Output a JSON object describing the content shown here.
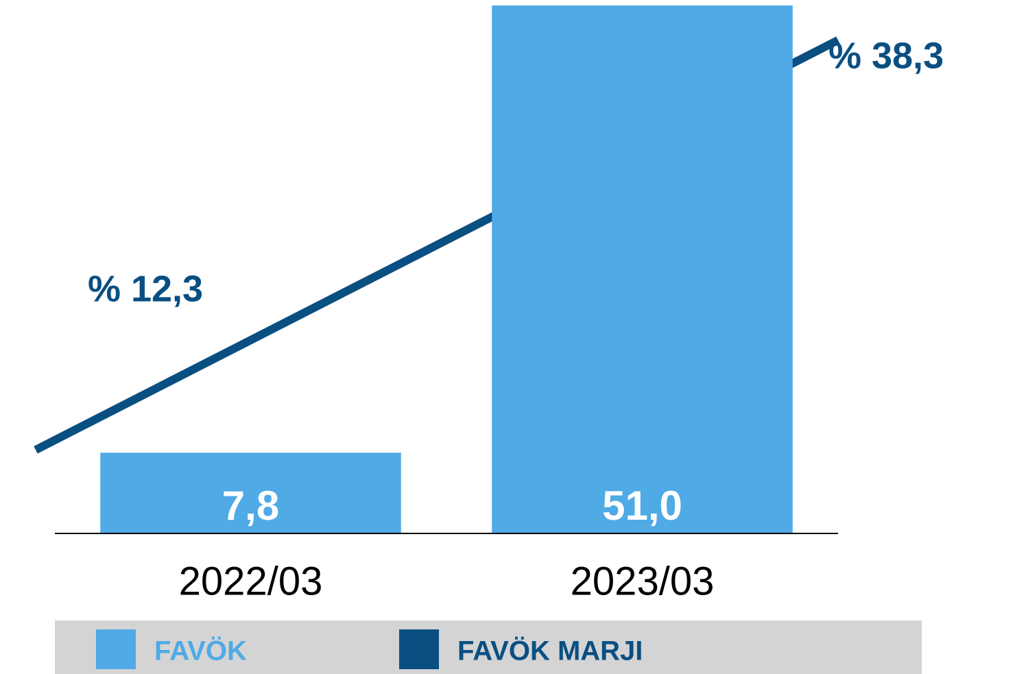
{
  "chart_data": {
    "type": "bar",
    "categories": [
      "2022/03",
      "2023/03"
    ],
    "series": [
      {
        "name": "FAVÖK",
        "color": "#4faae6",
        "values": [
          7.8,
          51.0
        ],
        "value_labels": [
          "7,8",
          "51,0"
        ]
      },
      {
        "name": "FAVÖK MARJI",
        "type": "line",
        "axis": "y2",
        "color": "#0a4f82",
        "values": [
          12.3,
          38.3
        ],
        "value_labels": [
          "% 12,3",
          "% 38,3"
        ]
      }
    ],
    "ylim": [
      0,
      51
    ],
    "y2lim": [
      7,
      40.5
    ],
    "grid": false,
    "legend": "bottom"
  }
}
